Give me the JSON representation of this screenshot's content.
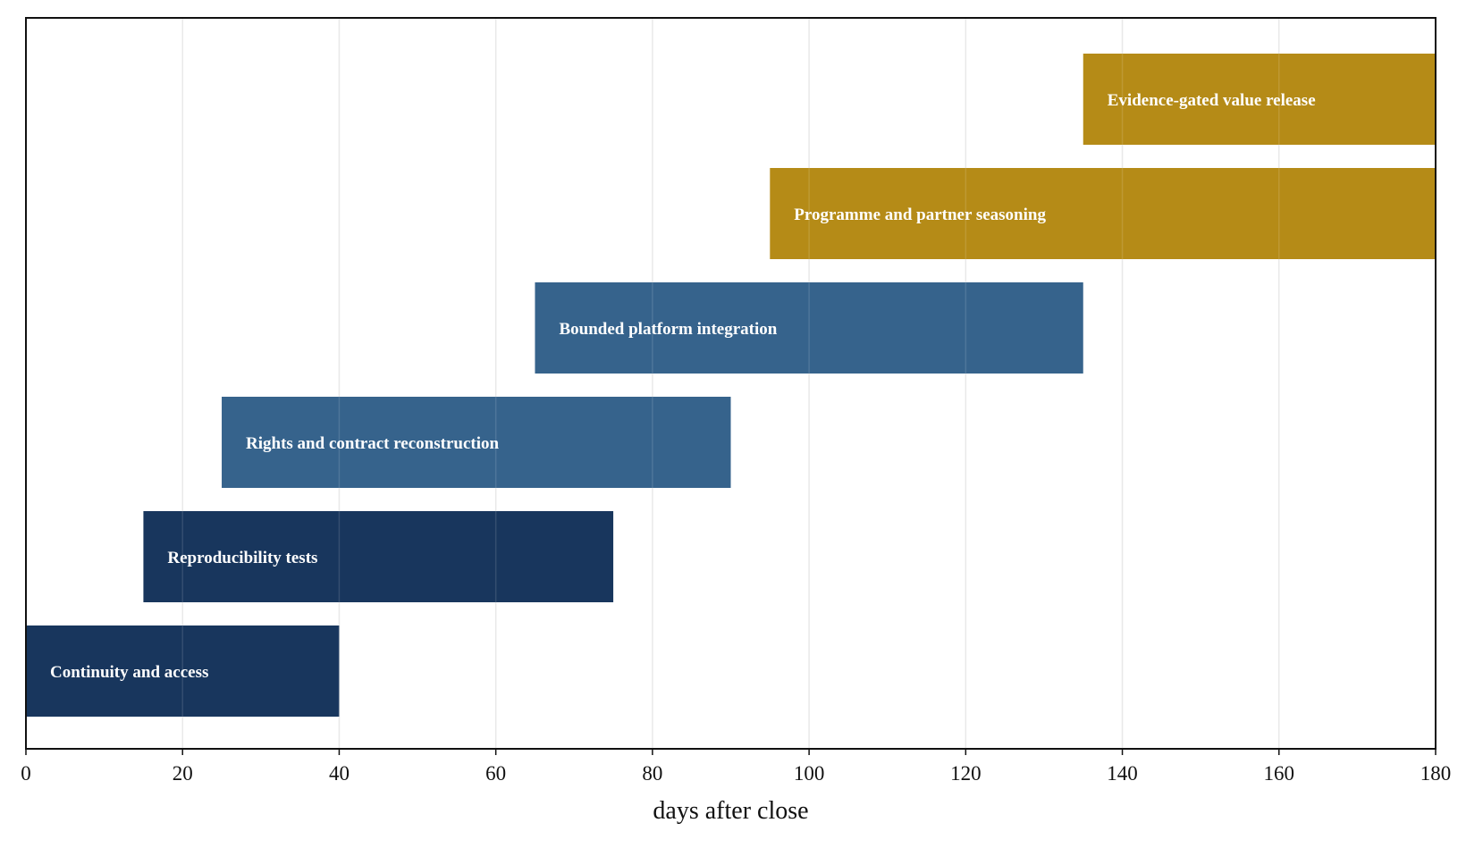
{
  "chart_data": {
    "type": "bar",
    "orientation": "horizontal-gantt",
    "title": "",
    "xlabel": "days after close",
    "ylabel": "",
    "xlim": [
      0,
      180
    ],
    "x_ticks": [
      0,
      20,
      40,
      60,
      80,
      100,
      120,
      140,
      160,
      180
    ],
    "grid": "vertical",
    "tasks": [
      {
        "label": "Continuity and access",
        "start": 0,
        "end": 40,
        "color": "#18365d"
      },
      {
        "label": "Reproducibility tests",
        "start": 15,
        "end": 75,
        "color": "#18365d"
      },
      {
        "label": "Rights and contract reconstruction",
        "start": 25,
        "end": 90,
        "color": "#36638c"
      },
      {
        "label": "Bounded platform integration",
        "start": 65,
        "end": 135,
        "color": "#36638c"
      },
      {
        "label": "Programme and partner seasoning",
        "start": 95,
        "end": 180,
        "color": "#b58b17"
      },
      {
        "label": "Evidence-gated value release",
        "start": 135,
        "end": 180,
        "color": "#b58b17"
      }
    ]
  }
}
